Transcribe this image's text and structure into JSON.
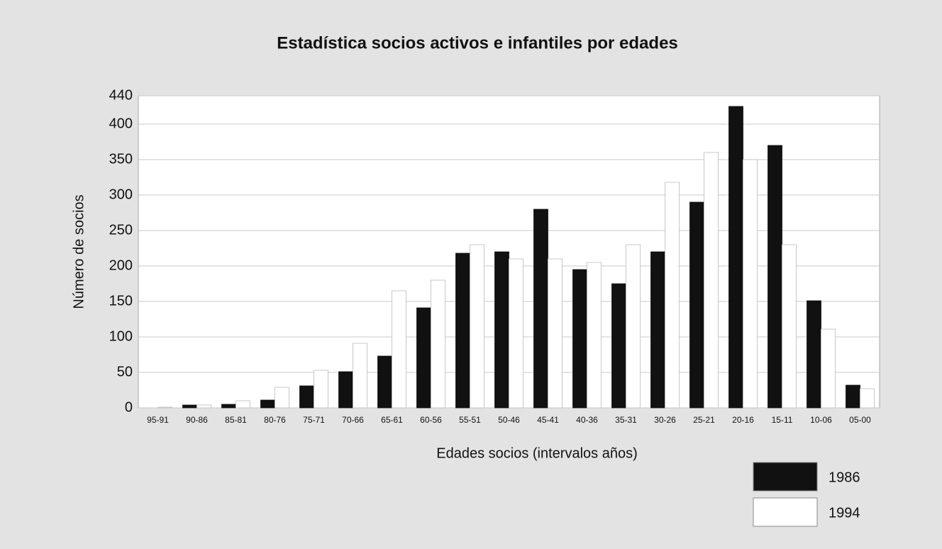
{
  "chart_data": {
    "type": "bar",
    "title": "Estadística socios activos e infantiles por edades",
    "x_label": "Edades socios (intervalos años)",
    "y_label": "Número de socios",
    "categories": [
      "95-91",
      "90-86",
      "85-81",
      "80-76",
      "75-71",
      "70-66",
      "65-61",
      "60-56",
      "55-51",
      "50-46",
      "45-41",
      "40-36",
      "35-31",
      "30-26",
      "25-21",
      "20-16",
      "15-11",
      "10-06",
      "05-00"
    ],
    "series": [
      {
        "name": "1986",
        "color": "#111111",
        "values": [
          0,
          4,
          5,
          11,
          31,
          51,
          73,
          141,
          218,
          220,
          280,
          195,
          175,
          220,
          290,
          425,
          370,
          151,
          32
        ]
      },
      {
        "name": "1994",
        "color": "#ffffff",
        "values": [
          1,
          4,
          10,
          29,
          53,
          91,
          165,
          180,
          230,
          210,
          210,
          205,
          230,
          318,
          360,
          350,
          230,
          111,
          27
        ]
      }
    ],
    "ylim": [
      0,
      440
    ],
    "yticks": [
      0,
      50,
      100,
      150,
      200,
      250,
      300,
      350,
      400,
      440
    ],
    "grid": true,
    "legend": "bottom-right"
  }
}
